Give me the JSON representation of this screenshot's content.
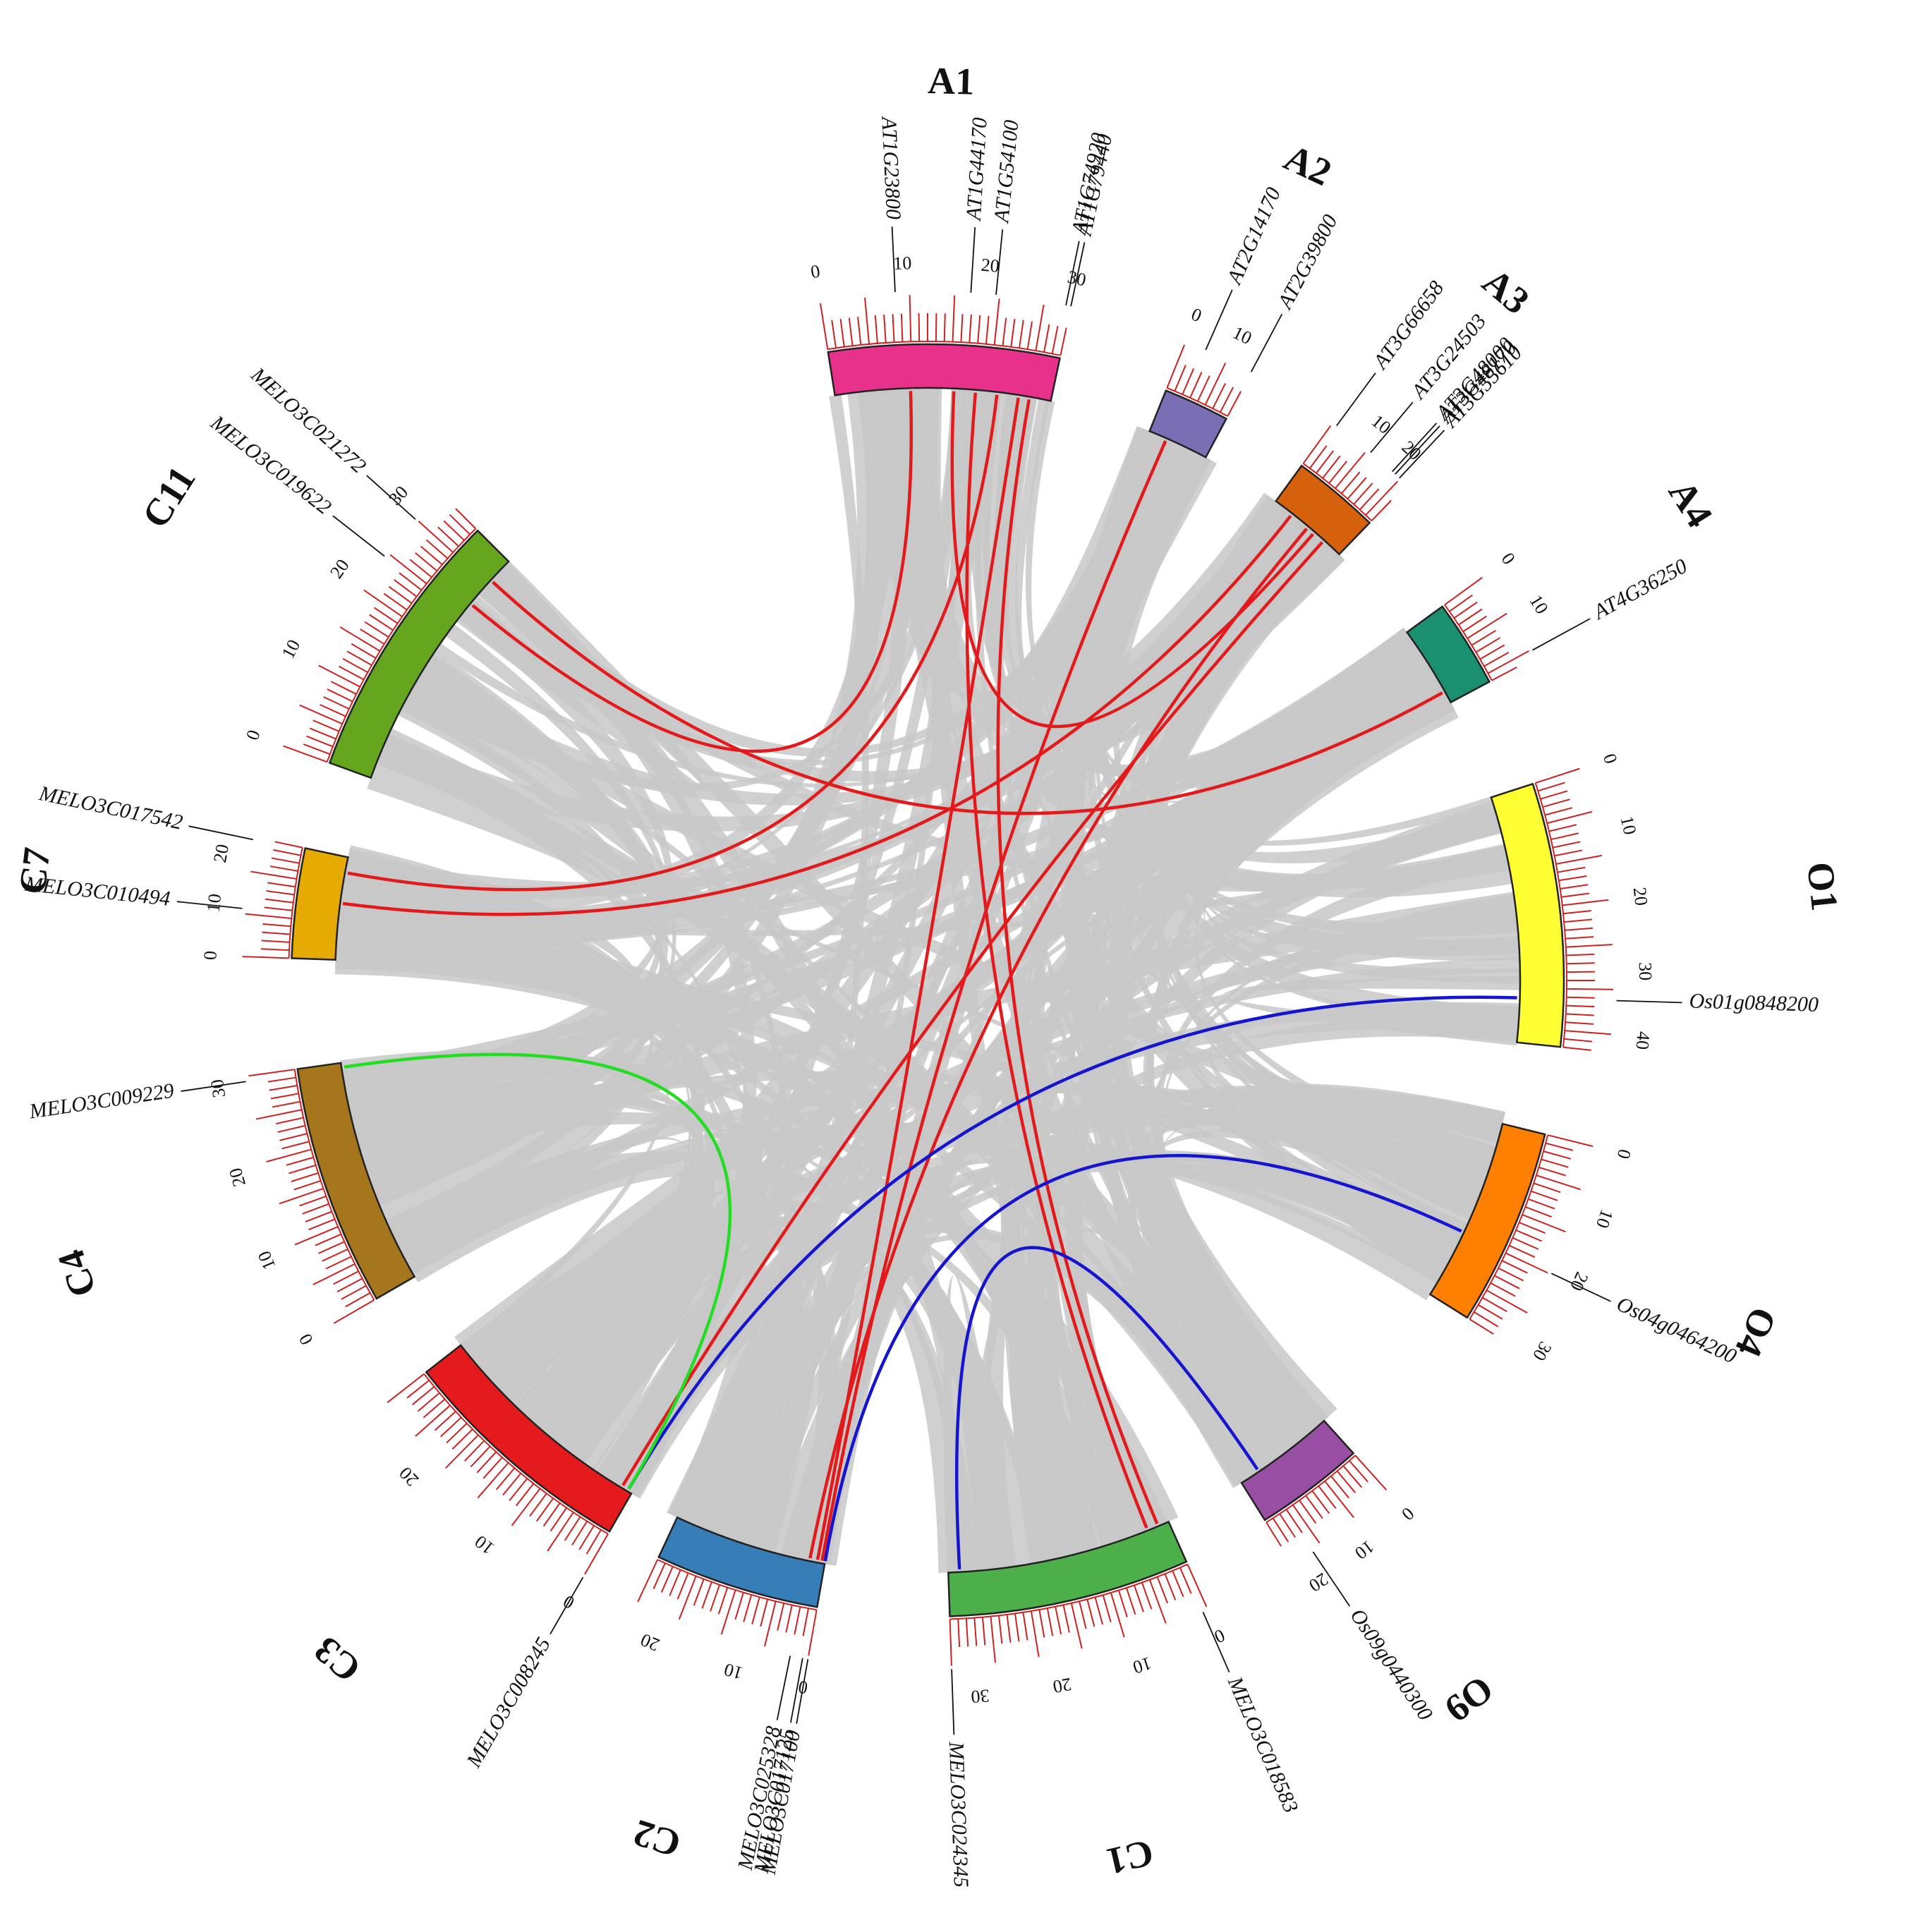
{
  "chromosomes": [
    {
      "id": "A1",
      "label": "A1",
      "color": "#e8318b",
      "ticks": [
        {
          "v": "0",
          "p": 0
        },
        {
          "v": "10",
          "p": 0.333
        },
        {
          "v": "20",
          "p": 0.667
        },
        {
          "v": "30",
          "p": 1
        }
      ]
    },
    {
      "id": "A2",
      "label": "A2",
      "color": "#7a6fb5",
      "ticks": [
        {
          "v": "0",
          "p": 0
        },
        {
          "v": "10",
          "p": 0.667
        }
      ]
    },
    {
      "id": "A3",
      "label": "A3",
      "color": "#d6610d",
      "ticks": [
        {
          "v": "10",
          "p": 0.4
        },
        {
          "v": "20",
          "p": 0.8
        }
      ]
    },
    {
      "id": "A4",
      "label": "A4",
      "color": "#1a9070",
      "ticks": [
        {
          "v": "0",
          "p": 0
        },
        {
          "v": "10",
          "p": 0.55
        }
      ]
    },
    {
      "id": "O1",
      "label": "O1",
      "color": "#ffff33",
      "ticks": [
        {
          "v": "0",
          "p": 0
        },
        {
          "v": "10",
          "p": 0.23
        },
        {
          "v": "20",
          "p": 0.47
        },
        {
          "v": "30",
          "p": 0.72
        },
        {
          "v": "40",
          "p": 0.95
        }
      ]
    },
    {
      "id": "O4",
      "label": "O4",
      "color": "#ff7f00",
      "ticks": [
        {
          "v": "0",
          "p": 0
        },
        {
          "v": "10",
          "p": 0.3
        },
        {
          "v": "20",
          "p": 0.6
        },
        {
          "v": "30",
          "p": 0.95
        }
      ]
    },
    {
      "id": "O9",
      "label": "O9",
      "color": "#984ea3",
      "ticks": [
        {
          "v": "0",
          "p": 0
        },
        {
          "v": "10",
          "p": 0.45
        },
        {
          "v": "20",
          "p": 0.9
        }
      ]
    },
    {
      "id": "C1",
      "label": "C1",
      "color": "#4daf4a",
      "ticks": [
        {
          "v": "0",
          "p": 0
        },
        {
          "v": "10",
          "p": 0.3
        },
        {
          "v": "20",
          "p": 0.6
        },
        {
          "v": "30",
          "p": 0.9
        }
      ]
    },
    {
      "id": "C2",
      "label": "C2",
      "color": "#377eb8",
      "ticks": [
        {
          "v": "0",
          "p": 0
        },
        {
          "v": "10",
          "p": 0.38
        },
        {
          "v": "20",
          "p": 0.85
        }
      ]
    },
    {
      "id": "C3",
      "label": "C3",
      "color": "#e41a1c",
      "ticks": [
        {
          "v": "0",
          "p": 0
        },
        {
          "v": "10",
          "p": 0.37
        },
        {
          "v": "20",
          "p": 0.74
        }
      ]
    },
    {
      "id": "C4",
      "label": "C4",
      "color": "#a6761d",
      "ticks": [
        {
          "v": "0",
          "p": 0
        },
        {
          "v": "10",
          "p": 0.32
        },
        {
          "v": "20",
          "p": 0.64
        },
        {
          "v": "30",
          "p": 0.97
        }
      ]
    },
    {
      "id": "C7",
      "label": "C7",
      "color": "#e6ab02",
      "ticks": [
        {
          "v": "0",
          "p": 0
        },
        {
          "v": "10",
          "p": 0.42
        },
        {
          "v": "20",
          "p": 0.82
        }
      ]
    },
    {
      "id": "C11",
      "label": "C11",
      "color": "#66a61e",
      "ticks": [
        {
          "v": "0",
          "p": 0
        },
        {
          "v": "10",
          "p": 0.3
        },
        {
          "v": "20",
          "p": 0.6
        },
        {
          "v": "30",
          "p": 0.9
        }
      ]
    }
  ],
  "genes": [
    {
      "name": "AT1G23800",
      "chr": "A1",
      "pos": 0.3
    },
    {
      "name": "AT1G44170",
      "chr": "A1",
      "pos": 0.6
    },
    {
      "name": "AT1G54100",
      "chr": "A1",
      "pos": 0.7
    },
    {
      "name": "AT1G74920",
      "chr": "A1",
      "pos": 0.98
    },
    {
      "name": "AT1G79440",
      "chr": "A1",
      "pos": 1.0
    },
    {
      "name": "AT2G14170",
      "chr": "A2",
      "pos": 0.3
    },
    {
      "name": "AT2G39800",
      "chr": "A2",
      "pos": 1.0
    },
    {
      "name": "AT3G66658",
      "chr": "A3",
      "pos": 0.05
    },
    {
      "name": "AT3G24503",
      "chr": "A3",
      "pos": 0.5
    },
    {
      "name": "AT3G48000",
      "chr": "A3",
      "pos": 0.8
    },
    {
      "name": "AT3G48170",
      "chr": "A3",
      "pos": 0.84
    },
    {
      "name": "AT3G55610",
      "chr": "A3",
      "pos": 0.9
    },
    {
      "name": "AT4G36250",
      "chr": "A4",
      "pos": 0.92
    },
    {
      "name": "Os01g0848200",
      "chr": "O1",
      "pos": 0.82
    },
    {
      "name": "Os04g0464200",
      "chr": "O4",
      "pos": 0.62
    },
    {
      "name": "Os09g0440300",
      "chr": "O9",
      "pos": 0.8
    },
    {
      "name": "MELO3C018583",
      "chr": "C1",
      "pos": 0.02
    },
    {
      "name": "MELO3C024345",
      "chr": "C1",
      "pos": 1.0
    },
    {
      "name": "MELO3C017100",
      "chr": "C2",
      "pos": 0.0
    },
    {
      "name": "MELO3C017125",
      "chr": "C2",
      "pos": 0.03
    },
    {
      "name": "MELO3C025328",
      "chr": "C2",
      "pos": 0.1
    },
    {
      "name": "MELO3C008245",
      "chr": "C3",
      "pos": 0.0
    },
    {
      "name": "MELO3C009229",
      "chr": "C4",
      "pos": 0.98
    },
    {
      "name": "MELO3C010494",
      "chr": "C7",
      "pos": 0.4
    },
    {
      "name": "MELO3C017542",
      "chr": "C7",
      "pos": 0.98
    },
    {
      "name": "MELO3C019622",
      "chr": "C11",
      "pos": 0.72
    },
    {
      "name": "MELO3C021272",
      "chr": "C11",
      "pos": 0.88
    }
  ],
  "links": {
    "background_color": "#c8c8c8",
    "red_color": "#e31a1c",
    "blue_color": "#1515d0",
    "green_color": "#22dd22",
    "red": [
      {
        "a": "A1",
        "ap": 0.35,
        "b": "C11",
        "bp": 0.78
      },
      {
        "a": "A1",
        "ap": 0.75,
        "b": "C7",
        "bp": 0.85
      },
      {
        "a": "A1",
        "ap": 0.9,
        "b": "C1",
        "bp": 0.05
      },
      {
        "a": "A1",
        "ap": 0.85,
        "b": "C2",
        "bp": 0.05
      },
      {
        "a": "A1",
        "ap": 0.55,
        "b": "A3",
        "bp": 0.6
      },
      {
        "a": "A2",
        "ap": 0.3,
        "b": "C2",
        "bp": 0.02
      },
      {
        "a": "A3",
        "ap": 0.25,
        "b": "C7",
        "bp": 0.55
      },
      {
        "a": "A3",
        "ap": 0.5,
        "b": "C2",
        "bp": 0.1
      },
      {
        "a": "A3",
        "ap": 0.75,
        "b": "C3",
        "bp": 0.05
      },
      {
        "a": "A4",
        "ap": 0.85,
        "b": "C11",
        "bp": 0.9
      },
      {
        "a": "A1",
        "ap": 0.65,
        "b": "C1",
        "bp": 0.1
      }
    ],
    "blue": [
      {
        "a": "C3",
        "ap": 0.02,
        "b": "O1",
        "bp": 0.82
      },
      {
        "a": "C2",
        "ap": 0.0,
        "b": "O4",
        "bp": 0.62
      },
      {
        "a": "C1",
        "ap": 0.95,
        "b": "O9",
        "bp": 0.8
      }
    ],
    "green": [
      {
        "a": "C4",
        "ap": 0.98,
        "b": "C3",
        "bp": 0.02
      }
    ]
  }
}
